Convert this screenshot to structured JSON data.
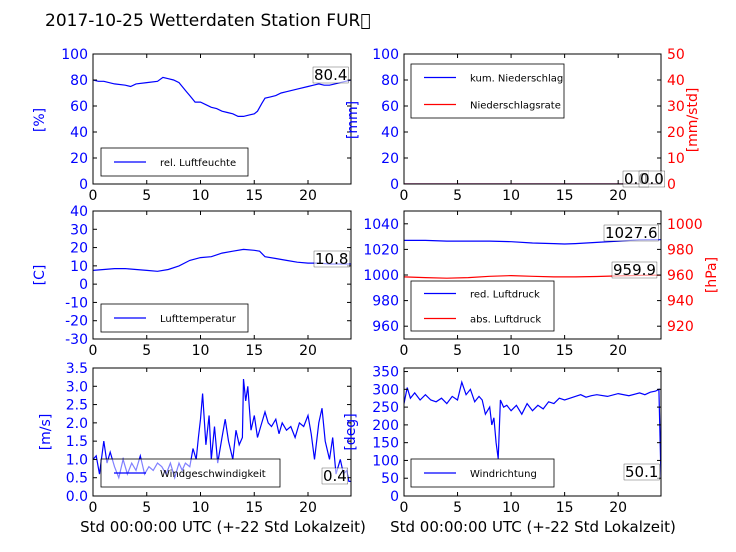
{
  "figure": {
    "title": "2017-10-25 Wetterdaten Station FUR\u0000",
    "xlabel": "Std 00:00:00 UTC (+-22 Std Lokalzeit)"
  },
  "chart_data": [
    {
      "id": "humidity",
      "type": "line",
      "ylabel": "[%]",
      "xlim": [
        0,
        24
      ],
      "ylim": [
        0,
        100
      ],
      "xticks": [
        0,
        5,
        10,
        15,
        20
      ],
      "yticks": [
        0,
        20,
        40,
        60,
        80,
        100
      ],
      "series": [
        {
          "name": "rel. Luftfeuchte",
          "color": "#0000ff",
          "x": [
            0,
            0.5,
            1,
            2,
            3,
            3.5,
            4,
            5,
            6,
            6.5,
            7,
            7.5,
            8,
            8.3,
            8.7,
            9,
            9.5,
            10,
            10.5,
            11,
            11.5,
            12,
            12.5,
            13,
            13.5,
            14,
            14.5,
            15,
            15.3,
            15.7,
            16,
            16.5,
            17,
            17.5,
            18,
            19,
            20,
            20.5,
            21,
            21.5,
            22,
            22.5,
            23,
            23.5,
            24
          ],
          "y": [
            80,
            79,
            79,
            77,
            76,
            75,
            77,
            78,
            79,
            82,
            81,
            80,
            78,
            75,
            71,
            68,
            63,
            63,
            61,
            59,
            58,
            56,
            55,
            54,
            52,
            52,
            53,
            54,
            56,
            62,
            66,
            67,
            68,
            70,
            71,
            73,
            75,
            76,
            77,
            76,
            76,
            77,
            78,
            79,
            80
          ]
        }
      ],
      "annotation": "80.4",
      "legend": "lower-left"
    },
    {
      "id": "precipitation",
      "type": "line",
      "ylabel": "[mm]",
      "ylabel_right": "[mm/std]",
      "xlim": [
        0,
        24
      ],
      "ylim": [
        0,
        100
      ],
      "ylim_right": [
        0,
        50
      ],
      "xticks": [
        0,
        5,
        10,
        15,
        20
      ],
      "yticks": [
        0,
        20,
        40,
        60,
        80,
        100
      ],
      "yticks_right": [
        0,
        10,
        20,
        30,
        40,
        50
      ],
      "series": [
        {
          "name": "kum. Niederschlag",
          "color": "#0000ff",
          "axis": "left",
          "x": [
            0,
            24
          ],
          "y": [
            0,
            0
          ]
        },
        {
          "name": "Niederschlagsrate",
          "color": "#ff0000",
          "axis": "right",
          "x": [
            0,
            24
          ],
          "y": [
            0,
            0
          ]
        }
      ],
      "annotations": [
        "0.0",
        "0.0"
      ],
      "legend": "upper-left"
    },
    {
      "id": "temperature",
      "type": "line",
      "ylabel": "[C]",
      "xlim": [
        0,
        24
      ],
      "ylim": [
        -30,
        40
      ],
      "xticks": [
        0,
        5,
        10,
        15,
        20
      ],
      "yticks": [
        -30,
        -20,
        -10,
        0,
        10,
        20,
        30,
        40
      ],
      "series": [
        {
          "name": "Lufttemperatur",
          "color": "#0000ff",
          "x": [
            0,
            1,
            2,
            3,
            4,
            5,
            6,
            7,
            8,
            9,
            10,
            11,
            12,
            13,
            14,
            15,
            15.5,
            16,
            17,
            18,
            19,
            20,
            21,
            22,
            23,
            24
          ],
          "y": [
            7.5,
            8,
            8.5,
            8.5,
            8,
            7.5,
            7,
            8,
            10,
            13,
            14.5,
            15,
            17,
            18,
            19,
            18.5,
            18,
            15,
            14,
            13,
            12,
            11.5,
            11.5,
            11,
            11,
            11
          ]
        }
      ],
      "annotation": "10.8",
      "legend": "lower-left"
    },
    {
      "id": "pressure",
      "type": "line",
      "ylabel_right": "[hPa]",
      "xlim": [
        0,
        24
      ],
      "ylim": [
        950,
        1050
      ],
      "ylim_right": [
        910,
        1010
      ],
      "xticks": [
        0,
        5,
        10,
        15,
        20
      ],
      "yticks": [
        960,
        980,
        1000,
        1020,
        1040
      ],
      "yticks_right": [
        920,
        940,
        960,
        980,
        1000
      ],
      "series": [
        {
          "name": "red. Luftdruck",
          "color": "#0000ff",
          "axis": "left",
          "x": [
            0,
            2,
            4,
            6,
            8,
            10,
            12,
            14,
            15,
            16,
            18,
            20,
            22,
            24
          ],
          "y": [
            1027,
            1027,
            1026.5,
            1026.5,
            1026.5,
            1026,
            1025,
            1024.5,
            1024.2,
            1024.5,
            1025.5,
            1026.5,
            1027.5,
            1027.6
          ]
        },
        {
          "name": "abs. Luftdruck",
          "color": "#ff0000",
          "axis": "right",
          "x": [
            0,
            2,
            4,
            6,
            8,
            10,
            12,
            14,
            16,
            18,
            20,
            22,
            24
          ],
          "y": [
            958.5,
            958,
            957.5,
            958,
            959,
            959.5,
            959,
            958.5,
            958.5,
            958.8,
            959.3,
            959.7,
            959.9
          ]
        }
      ],
      "annotations": [
        "1027.6",
        "959.9"
      ],
      "legend": "lower-left"
    },
    {
      "id": "windspeed",
      "type": "line",
      "ylabel": "[m/s]",
      "xlim": [
        0,
        24
      ],
      "ylim": [
        0,
        3.5
      ],
      "xticks": [
        0,
        5,
        10,
        15,
        20
      ],
      "yticks": [
        0.0,
        0.5,
        1.0,
        1.5,
        2.0,
        2.5,
        3.0,
        3.5
      ],
      "series": [
        {
          "name": "Windgeschwindigkeit",
          "color": "#0000ff",
          "x": [
            0,
            0.3,
            0.6,
            1,
            1.3,
            1.6,
            2,
            2.4,
            2.8,
            3.2,
            3.6,
            4,
            4.4,
            4.8,
            5.2,
            5.6,
            6,
            6.4,
            6.8,
            7.2,
            7.6,
            8,
            8.3,
            8.6,
            9,
            9.3,
            9.6,
            9.8,
            10,
            10.2,
            10.5,
            10.8,
            11,
            11.3,
            11.6,
            12,
            12.3,
            12.6,
            13,
            13.3,
            13.6,
            13.9,
            14,
            14.2,
            14.4,
            14.7,
            15,
            15.3,
            15.6,
            16,
            16.3,
            16.6,
            17,
            17.3,
            17.6,
            18,
            18.4,
            18.8,
            19.2,
            19.6,
            20,
            20.3,
            20.6,
            21,
            21.3,
            21.6,
            22,
            22.3,
            22.6,
            23,
            23.3,
            23.6,
            23.8,
            24
          ],
          "y": [
            1.0,
            1.1,
            0.6,
            1.5,
            0.9,
            1.2,
            0.8,
            0.5,
            1.0,
            0.6,
            0.9,
            0.7,
            1.1,
            0.6,
            0.8,
            0.7,
            0.9,
            0.8,
            0.6,
            0.9,
            0.5,
            0.9,
            0.7,
            0.9,
            0.8,
            1.3,
            1.0,
            1.6,
            2.1,
            2.8,
            1.4,
            2.2,
            1.0,
            1.9,
            0.9,
            1.6,
            2.1,
            1.5,
            1.0,
            1.8,
            1.4,
            1.6,
            3.2,
            2.6,
            3.0,
            1.8,
            2.2,
            1.6,
            1.9,
            2.3,
            2.0,
            1.9,
            2.1,
            1.7,
            2.0,
            1.8,
            1.9,
            1.6,
            2.0,
            1.9,
            2.2,
            1.7,
            1.0,
            2.0,
            2.4,
            1.5,
            1.0,
            1.6,
            0.6,
            1.0,
            0.6,
            0.7,
            0.4,
            0.4
          ]
        }
      ],
      "annotation": "0.4",
      "legend": "lower-left"
    },
    {
      "id": "winddirection",
      "type": "line",
      "ylabel": "[deg]",
      "xlim": [
        0,
        24
      ],
      "ylim": [
        0,
        360
      ],
      "xticks": [
        0,
        5,
        10,
        15,
        20
      ],
      "yticks": [
        0,
        50,
        100,
        150,
        200,
        250,
        300,
        350
      ],
      "series": [
        {
          "name": "Windrichtung",
          "color": "#0000ff",
          "x": [
            0,
            0.3,
            0.6,
            1,
            1.5,
            2,
            2.5,
            3,
            3.5,
            4,
            4.5,
            5,
            5.4,
            5.8,
            6.2,
            6.6,
            7,
            7.3,
            7.6,
            8,
            8.2,
            8.4,
            8.6,
            8.8,
            9,
            9.3,
            9.6,
            10,
            10.5,
            11,
            11.5,
            12,
            12.5,
            13,
            13.5,
            14,
            14.5,
            15,
            15.5,
            16,
            16.5,
            17,
            17.5,
            18,
            19,
            20,
            21,
            22,
            22.5,
            23,
            23.5,
            23.8,
            23.9,
            24
          ],
          "y": [
            260,
            305,
            275,
            290,
            270,
            285,
            270,
            265,
            275,
            260,
            280,
            270,
            320,
            285,
            300,
            265,
            280,
            270,
            230,
            250,
            200,
            220,
            150,
            105,
            270,
            250,
            255,
            240,
            255,
            230,
            260,
            240,
            255,
            245,
            265,
            260,
            275,
            270,
            275,
            280,
            285,
            278,
            282,
            285,
            280,
            288,
            282,
            290,
            285,
            292,
            295,
            300,
            180,
            50
          ]
        }
      ],
      "annotation": "50.1",
      "legend": "lower-left"
    }
  ]
}
